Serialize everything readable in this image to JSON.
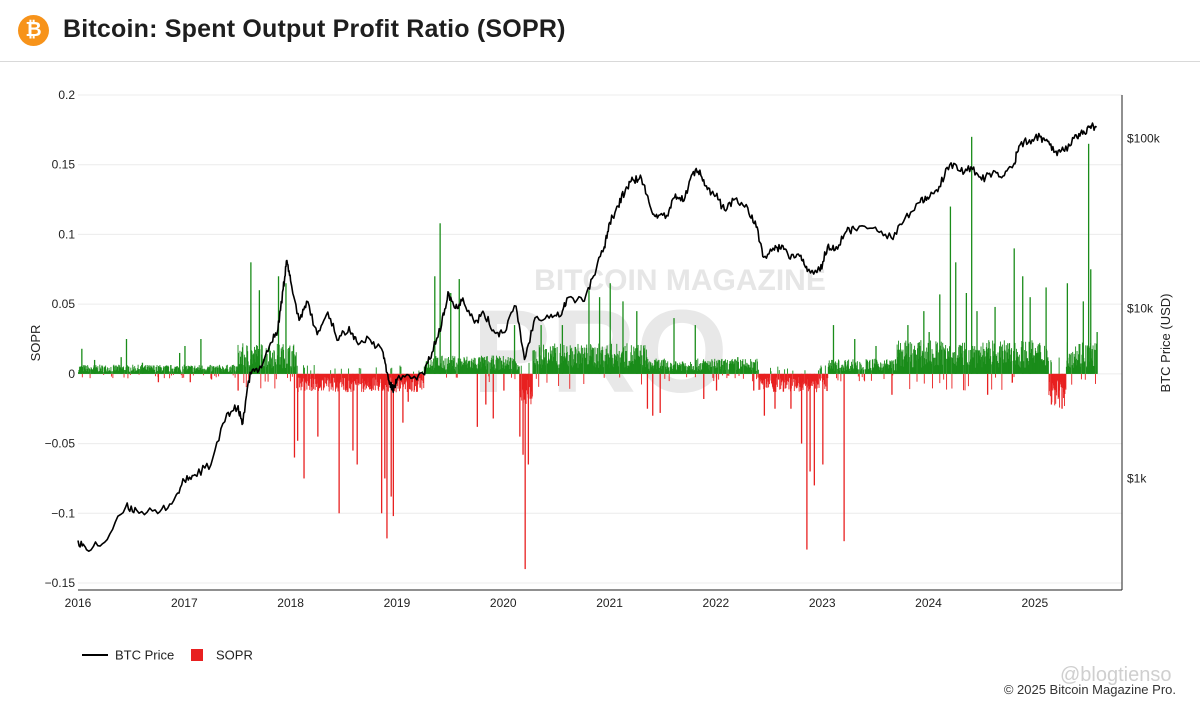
{
  "header": {
    "title": "Bitcoin: Spent Output Profit Ratio (SOPR)",
    "logo_glyph": "₿",
    "logo_icon": "bitcoin-logo-icon",
    "logo_color": "#F7931A"
  },
  "footer": {
    "copyright": "© 2025 Bitcoin Magazine Pro.",
    "watermark_tag": "@blogtienso"
  },
  "chart_data": {
    "type": "bar",
    "title": "Bitcoin: Spent Output Profit Ratio (SOPR)",
    "ylabel": "SOPR",
    "y2label": "BTC Price (USD)",
    "ylim": [
      -0.155,
      0.2
    ],
    "y_ticks": [
      {
        "v": 0.2,
        "label": "0.2"
      },
      {
        "v": 0.15,
        "label": "0.15"
      },
      {
        "v": 0.1,
        "label": "0.1"
      },
      {
        "v": 0.05,
        "label": "0.05"
      },
      {
        "v": 0,
        "label": "0"
      },
      {
        "v": -0.05,
        "label": "−0.05"
      },
      {
        "v": -0.1,
        "label": "−0.1"
      },
      {
        "v": -0.15,
        "label": "−0.15"
      }
    ],
    "y2_scale": "log",
    "y2lim": [
      220,
      180000
    ],
    "y2_ticks": [
      {
        "v": 1000,
        "label": "$1k"
      },
      {
        "v": 10000,
        "label": "$10k"
      },
      {
        "v": 100000,
        "label": "$100k"
      }
    ],
    "xlim": [
      2016.0,
      2025.82
    ],
    "x_ticks": [
      "2016",
      "2017",
      "2018",
      "2019",
      "2020",
      "2021",
      "2022",
      "2023",
      "2024",
      "2025"
    ],
    "grid": true,
    "legend_position": "bottom-left",
    "watermark": "BITCOIN MAGAZINE PRO",
    "colors": {
      "price": "#000000",
      "positive": "#1a8c1a",
      "negative": "#e82020"
    },
    "series": [
      {
        "name": "BTC Price",
        "kind": "line",
        "color": "#000000",
        "points": [
          [
            2016.0,
            430
          ],
          [
            2016.08,
            380
          ],
          [
            2016.25,
            420
          ],
          [
            2016.45,
            680
          ],
          [
            2016.55,
            650
          ],
          [
            2016.75,
            620
          ],
          [
            2016.9,
            740
          ],
          [
            2017.0,
            970
          ],
          [
            2017.1,
            1050
          ],
          [
            2017.25,
            1200
          ],
          [
            2017.4,
            2400
          ],
          [
            2017.5,
            2600
          ],
          [
            2017.55,
            2100
          ],
          [
            2017.62,
            4200
          ],
          [
            2017.7,
            4300
          ],
          [
            2017.8,
            6000
          ],
          [
            2017.88,
            7500
          ],
          [
            2017.93,
            13000
          ],
          [
            2017.96,
            19000
          ],
          [
            2018.0,
            14500
          ],
          [
            2018.08,
            8500
          ],
          [
            2018.15,
            11000
          ],
          [
            2018.25,
            7000
          ],
          [
            2018.35,
            9500
          ],
          [
            2018.45,
            6500
          ],
          [
            2018.55,
            7800
          ],
          [
            2018.62,
            6400
          ],
          [
            2018.75,
            6500
          ],
          [
            2018.87,
            5500
          ],
          [
            2018.92,
            3800
          ],
          [
            2018.96,
            3300
          ],
          [
            2019.0,
            3800
          ],
          [
            2019.15,
            3900
          ],
          [
            2019.25,
            4100
          ],
          [
            2019.33,
            5500
          ],
          [
            2019.42,
            8000
          ],
          [
            2019.48,
            12500
          ],
          [
            2019.55,
            10000
          ],
          [
            2019.62,
            11500
          ],
          [
            2019.73,
            8200
          ],
          [
            2019.82,
            9300
          ],
          [
            2019.92,
            7200
          ],
          [
            2020.0,
            7200
          ],
          [
            2020.12,
            10300
          ],
          [
            2020.2,
            5000
          ],
          [
            2020.3,
            8800
          ],
          [
            2020.45,
            9200
          ],
          [
            2020.55,
            9200
          ],
          [
            2020.6,
            11500
          ],
          [
            2020.75,
            11000
          ],
          [
            2020.85,
            15500
          ],
          [
            2020.95,
            23000
          ],
          [
            2021.0,
            32000
          ],
          [
            2021.08,
            40000
          ],
          [
            2021.15,
            50000
          ],
          [
            2021.22,
            57000
          ],
          [
            2021.3,
            58000
          ],
          [
            2021.38,
            40000
          ],
          [
            2021.45,
            34000
          ],
          [
            2021.55,
            35000
          ],
          [
            2021.62,
            47000
          ],
          [
            2021.7,
            43000
          ],
          [
            2021.78,
            62000
          ],
          [
            2021.85,
            65000
          ],
          [
            2021.92,
            50000
          ],
          [
            2022.0,
            46000
          ],
          [
            2022.08,
            38000
          ],
          [
            2022.18,
            44000
          ],
          [
            2022.3,
            39000
          ],
          [
            2022.38,
            30000
          ],
          [
            2022.45,
            20000
          ],
          [
            2022.55,
            22000
          ],
          [
            2022.62,
            23500
          ],
          [
            2022.7,
            19500
          ],
          [
            2022.8,
            20500
          ],
          [
            2022.86,
            16500
          ],
          [
            2022.98,
            16600
          ],
          [
            2023.05,
            23000
          ],
          [
            2023.12,
            22000
          ],
          [
            2023.22,
            28000
          ],
          [
            2023.3,
            29500
          ],
          [
            2023.5,
            30000
          ],
          [
            2023.65,
            26000
          ],
          [
            2023.78,
            34000
          ],
          [
            2023.92,
            42000
          ],
          [
            2024.0,
            44000
          ],
          [
            2024.1,
            52000
          ],
          [
            2024.2,
            70000
          ],
          [
            2024.3,
            64000
          ],
          [
            2024.4,
            68000
          ],
          [
            2024.5,
            57000
          ],
          [
            2024.6,
            62000
          ],
          [
            2024.7,
            60000
          ],
          [
            2024.8,
            70000
          ],
          [
            2024.85,
            90000
          ],
          [
            2024.95,
            98000
          ],
          [
            2025.05,
            102000
          ],
          [
            2025.12,
            96000
          ],
          [
            2025.2,
            84000
          ],
          [
            2025.28,
            84000
          ],
          [
            2025.38,
            105000
          ],
          [
            2025.45,
            106000
          ],
          [
            2025.52,
            118000
          ],
          [
            2025.58,
            116000
          ]
        ]
      },
      {
        "name": "SOPR",
        "kind": "bar",
        "color": "#e82020",
        "positive_color": "#1a8c1a",
        "peaks": [
          [
            2016.03,
            0.018
          ],
          [
            2016.15,
            0.01
          ],
          [
            2016.4,
            0.012
          ],
          [
            2016.45,
            0.025
          ],
          [
            2016.6,
            0.008
          ],
          [
            2016.75,
            -0.006
          ],
          [
            2016.95,
            0.015
          ],
          [
            2017.0,
            0.02
          ],
          [
            2017.05,
            -0.006
          ],
          [
            2017.15,
            0.025
          ],
          [
            2017.25,
            -0.004
          ],
          [
            2017.5,
            -0.012
          ],
          [
            2017.62,
            0.08
          ],
          [
            2017.7,
            0.06
          ],
          [
            2017.88,
            0.07
          ],
          [
            2017.95,
            0.065
          ],
          [
            2018.03,
            -0.06
          ],
          [
            2018.06,
            -0.048
          ],
          [
            2018.12,
            -0.075
          ],
          [
            2018.25,
            -0.045
          ],
          [
            2018.45,
            -0.1
          ],
          [
            2018.58,
            -0.055
          ],
          [
            2018.62,
            -0.065
          ],
          [
            2018.85,
            -0.1
          ],
          [
            2018.88,
            -0.075
          ],
          [
            2018.9,
            -0.118
          ],
          [
            2018.94,
            -0.088
          ],
          [
            2018.96,
            -0.102
          ],
          [
            2019.05,
            -0.035
          ],
          [
            2019.1,
            -0.02
          ],
          [
            2019.35,
            0.07
          ],
          [
            2019.4,
            0.108
          ],
          [
            2019.5,
            0.058
          ],
          [
            2019.58,
            0.068
          ],
          [
            2019.75,
            -0.038
          ],
          [
            2019.83,
            -0.022
          ],
          [
            2019.9,
            -0.032
          ],
          [
            2020.0,
            -0.012
          ],
          [
            2020.1,
            0.035
          ],
          [
            2020.15,
            -0.045
          ],
          [
            2020.18,
            -0.058
          ],
          [
            2020.2,
            -0.14
          ],
          [
            2020.23,
            -0.065
          ],
          [
            2020.35,
            0.035
          ],
          [
            2020.55,
            0.035
          ],
          [
            2020.8,
            0.06
          ],
          [
            2020.9,
            0.055
          ],
          [
            2021.0,
            0.065
          ],
          [
            2021.12,
            0.052
          ],
          [
            2021.25,
            0.045
          ],
          [
            2021.35,
            -0.025
          ],
          [
            2021.4,
            -0.03
          ],
          [
            2021.47,
            -0.028
          ],
          [
            2021.6,
            0.04
          ],
          [
            2021.8,
            0.035
          ],
          [
            2021.88,
            -0.018
          ],
          [
            2022.0,
            -0.012
          ],
          [
            2022.2,
            0.012
          ],
          [
            2022.35,
            -0.012
          ],
          [
            2022.45,
            -0.03
          ],
          [
            2022.55,
            -0.025
          ],
          [
            2022.7,
            -0.025
          ],
          [
            2022.8,
            -0.05
          ],
          [
            2022.85,
            -0.126
          ],
          [
            2022.88,
            -0.07
          ],
          [
            2022.92,
            -0.08
          ],
          [
            2023.0,
            -0.065
          ],
          [
            2023.1,
            0.035
          ],
          [
            2023.2,
            -0.12
          ],
          [
            2023.3,
            0.025
          ],
          [
            2023.5,
            0.02
          ],
          [
            2023.65,
            -0.015
          ],
          [
            2023.8,
            0.035
          ],
          [
            2023.95,
            0.045
          ],
          [
            2024.0,
            0.03
          ],
          [
            2024.1,
            0.057
          ],
          [
            2024.2,
            0.12
          ],
          [
            2024.25,
            0.08
          ],
          [
            2024.35,
            0.058
          ],
          [
            2024.4,
            0.17
          ],
          [
            2024.45,
            0.045
          ],
          [
            2024.55,
            -0.015
          ],
          [
            2024.62,
            0.048
          ],
          [
            2024.8,
            0.09
          ],
          [
            2024.88,
            0.07
          ],
          [
            2024.95,
            0.055
          ],
          [
            2025.1,
            0.062
          ],
          [
            2025.15,
            -0.022
          ],
          [
            2025.22,
            -0.012
          ],
          [
            2025.25,
            -0.025
          ],
          [
            2025.3,
            0.065
          ],
          [
            2025.45,
            0.052
          ],
          [
            2025.5,
            0.165
          ],
          [
            2025.52,
            0.075
          ],
          [
            2025.58,
            0.03
          ]
        ]
      }
    ]
  }
}
